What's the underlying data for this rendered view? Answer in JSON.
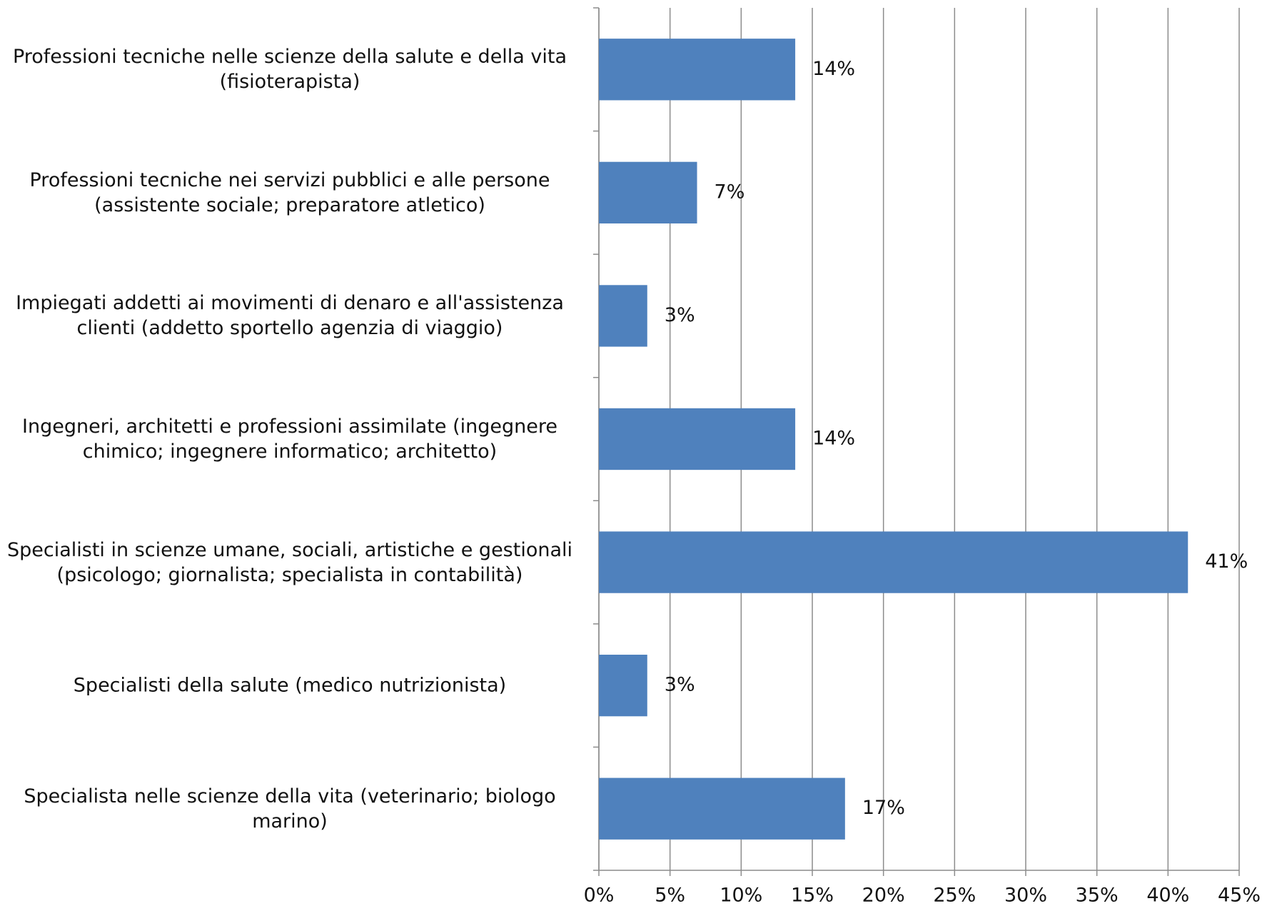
{
  "chart_data": {
    "type": "bar",
    "orientation": "horizontal",
    "categories": [
      "Professioni tecniche nelle scienze della salute e della vita (fisioterapista)",
      "Professioni tecniche nei servizi pubblici e alle persone (assistente sociale; preparatore atletico)",
      "Impiegati addetti ai movimenti di denaro e all'assistenza clienti (addetto sportello agenzia di viaggio)",
      "Ingegneri, architetti e professioni assimilate (ingegnere chimico; ingegnere informatico; architetto)",
      "Specialisti in scienze umane, sociali, artistiche e gestionali (psicologo; giornalista; specialista in contabilità)",
      "Specialisti della salute (medico nutrizionista)",
      "Specialista nelle scienze della vita (veterinario; biologo marino)"
    ],
    "values": [
      13.8,
      6.9,
      3.4,
      13.8,
      41.4,
      3.4,
      17.3
    ],
    "value_labels": [
      "14%",
      "7%",
      "3%",
      "14%",
      "41%",
      "3%",
      "17%"
    ],
    "color": "#4f81bd",
    "xlim": [
      0,
      45
    ],
    "xticks": [
      {
        "value": 0,
        "label": "0%"
      },
      {
        "value": 5,
        "label": "5%"
      },
      {
        "value": 10,
        "label": "10%"
      },
      {
        "value": 15,
        "label": "15%"
      },
      {
        "value": 20,
        "label": "20%"
      },
      {
        "value": 25,
        "label": "25%"
      },
      {
        "value": 30,
        "label": "30%"
      },
      {
        "value": 35,
        "label": "35%"
      },
      {
        "value": 40,
        "label": "40%"
      },
      {
        "value": 45,
        "label": "45%"
      }
    ],
    "grid": true
  }
}
